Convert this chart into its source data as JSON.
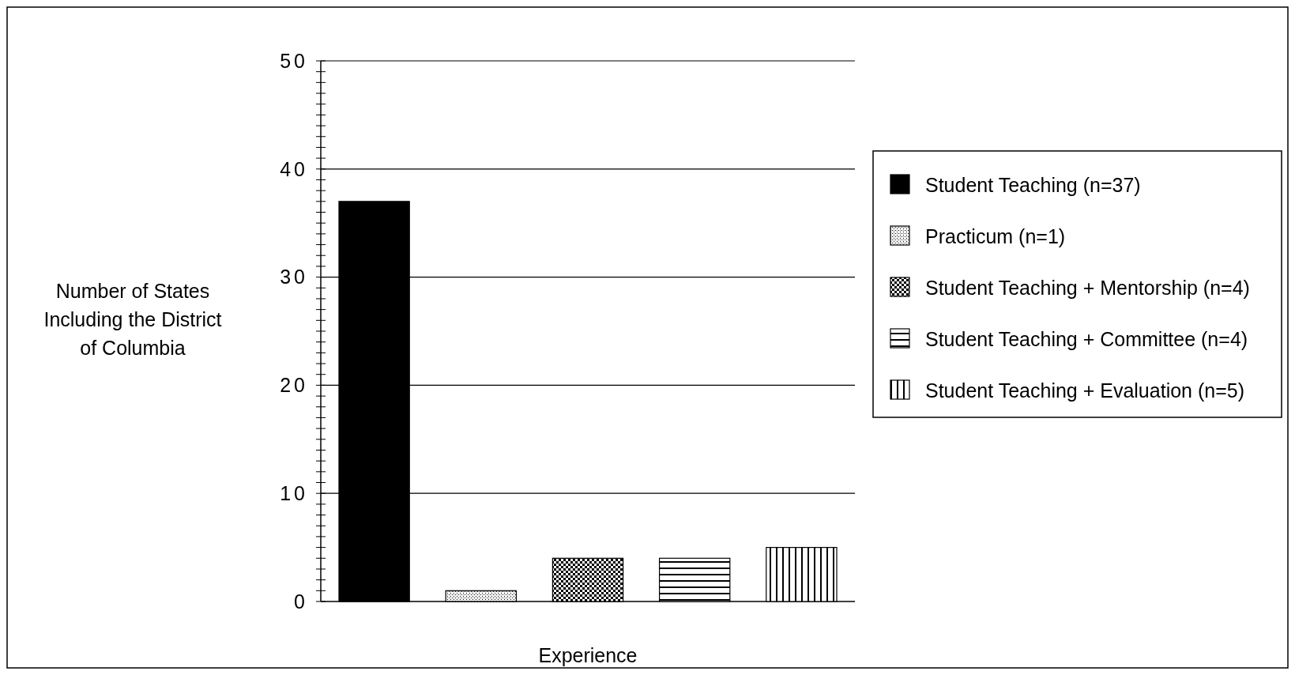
{
  "chart_data": {
    "type": "bar",
    "stacked": true,
    "xlabel": "Experience",
    "ylabel": "Number of States Including the District of Columbia",
    "categories": [
      null,
      null,
      null,
      null,
      null
    ],
    "series": [
      {
        "name": "Student Teaching (n=37)",
        "color": "#000000",
        "values": [
          37,
          null,
          null,
          null,
          null
        ]
      },
      {
        "name": "Practicum (n=1)",
        "color": "#000000",
        "values": [
          null,
          1,
          null,
          null,
          null
        ]
      },
      {
        "name": "Student Teaching + Mentorship (n=4)",
        "color": "#000000",
        "values": [
          null,
          null,
          4,
          null,
          null
        ]
      },
      {
        "name": "Student Teaching + Committee (n=4)",
        "color": "#000000",
        "values": [
          null,
          null,
          null,
          4,
          null
        ]
      },
      {
        "name": "Student Teaching + Evaluation (n=5)",
        "color": "#000000",
        "values": [
          null,
          null,
          null,
          null,
          5
        ]
      }
    ],
    "ylim": [
      0,
      50
    ],
    "yticks": [
      0,
      {
        "value": 1,
        "label": null
      },
      {
        "value": 2,
        "label": null
      },
      {
        "value": 3,
        "label": null
      },
      {
        "value": 4,
        "label": null
      },
      {
        "value": 5,
        "label": null
      },
      {
        "value": 6,
        "label": null
      },
      {
        "value": 7,
        "label": null
      },
      {
        "value": 8,
        "label": null
      },
      {
        "value": 9,
        "label": null
      },
      10,
      {
        "value": 11,
        "label": null
      },
      {
        "value": 12,
        "label": null
      },
      {
        "value": 13,
        "label": null
      },
      {
        "value": 14,
        "label": null
      },
      {
        "value": 15,
        "label": null
      },
      {
        "value": 16,
        "label": null
      },
      {
        "value": 17,
        "label": null
      },
      {
        "value": 18,
        "label": null
      },
      {
        "value": 19,
        "label": null
      },
      20,
      {
        "value": 21,
        "label": null
      },
      {
        "value": 22,
        "label": null
      },
      {
        "value": 23,
        "label": null
      },
      {
        "value": 24,
        "label": null
      },
      {
        "value": 25,
        "label": null
      },
      {
        "value": 26,
        "label": null
      },
      {
        "value": 27,
        "label": null
      },
      {
        "value": 28,
        "label": null
      },
      {
        "value": 29,
        "label": null
      },
      30,
      {
        "value": 31,
        "label": null
      },
      {
        "value": 32,
        "label": null
      },
      {
        "value": 33,
        "label": null
      },
      {
        "value": 34,
        "label": null
      },
      {
        "value": 35,
        "label": null
      },
      {
        "value": 36,
        "label": null
      },
      {
        "value": 37,
        "label": null
      },
      {
        "value": 38,
        "label": null
      },
      {
        "value": 39,
        "label": null
      },
      40,
      {
        "value": 41,
        "label": null
      },
      {
        "value": 42,
        "label": null
      },
      {
        "value": 43,
        "label": null
      },
      {
        "value": 44,
        "label": null
      },
      {
        "value": 45,
        "label": null
      },
      {
        "value": 46,
        "label": null
      },
      {
        "value": 47,
        "label": null
      },
      {
        "value": 48,
        "label": null
      },
      {
        "value": 49,
        "label": null
      },
      50
    ],
    "grid": "y",
    "legend": "right"
  }
}
